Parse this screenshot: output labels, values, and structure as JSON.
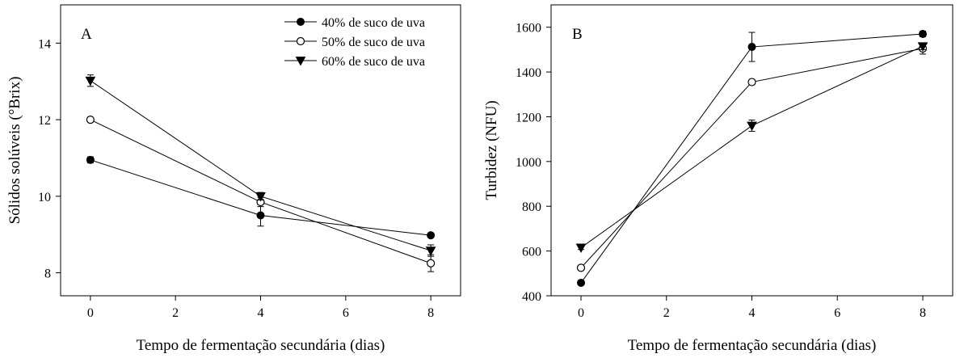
{
  "chart_data": [
    {
      "type": "line",
      "panel_label": "A",
      "xlabel": "Tempo de fermentação secundária (dias)",
      "ylabel": "Sólidos solúveis (°Brix)",
      "xlim": [
        -0.7,
        8.7
      ],
      "ylim": [
        7.4,
        15.0
      ],
      "xticks": [
        0,
        2,
        4,
        6,
        8
      ],
      "yticks": [
        8,
        10,
        12,
        14
      ],
      "x": [
        0,
        4,
        8
      ],
      "legend": {
        "position": "top-right",
        "entries": [
          "40% de suco de uva",
          "50% de suco de uva",
          "60% de suco de uva"
        ]
      },
      "series": [
        {
          "name": "40% de suco de uva",
          "marker": "filled-circle",
          "values": [
            10.95,
            9.5,
            8.98
          ],
          "errors": [
            0.08,
            0.28,
            0.05
          ]
        },
        {
          "name": "50% de suco de uva",
          "marker": "open-circle",
          "values": [
            12.0,
            9.85,
            8.25
          ],
          "errors": [
            0.05,
            0.12,
            0.22
          ]
        },
        {
          "name": "60% de suco de uva",
          "marker": "filled-triangle-down",
          "values": [
            13.02,
            10.0,
            8.58
          ],
          "errors": [
            0.15,
            0.1,
            0.15
          ]
        }
      ]
    },
    {
      "type": "line",
      "panel_label": "B",
      "xlabel": "Tempo de fermentação secundária (dias)",
      "ylabel": "Turbidez (NFU)",
      "xlim": [
        -0.7,
        8.7
      ],
      "ylim": [
        400,
        1700
      ],
      "xticks": [
        0,
        2,
        4,
        6,
        8
      ],
      "yticks": [
        400,
        600,
        800,
        1000,
        1200,
        1400,
        1600
      ],
      "x": [
        0,
        4,
        8
      ],
      "series": [
        {
          "name": "40% de suco de uva",
          "marker": "filled-circle",
          "values": [
            458,
            1512,
            1570
          ],
          "errors": [
            8,
            65,
            12
          ]
        },
        {
          "name": "50% de suco de uva",
          "marker": "open-circle",
          "values": [
            525,
            1355,
            1505
          ],
          "errors": [
            8,
            10,
            25
          ]
        },
        {
          "name": "60% de suco de uva",
          "marker": "filled-triangle-down",
          "values": [
            615,
            1160,
            1515
          ],
          "errors": [
            8,
            25,
            15
          ]
        }
      ]
    }
  ]
}
